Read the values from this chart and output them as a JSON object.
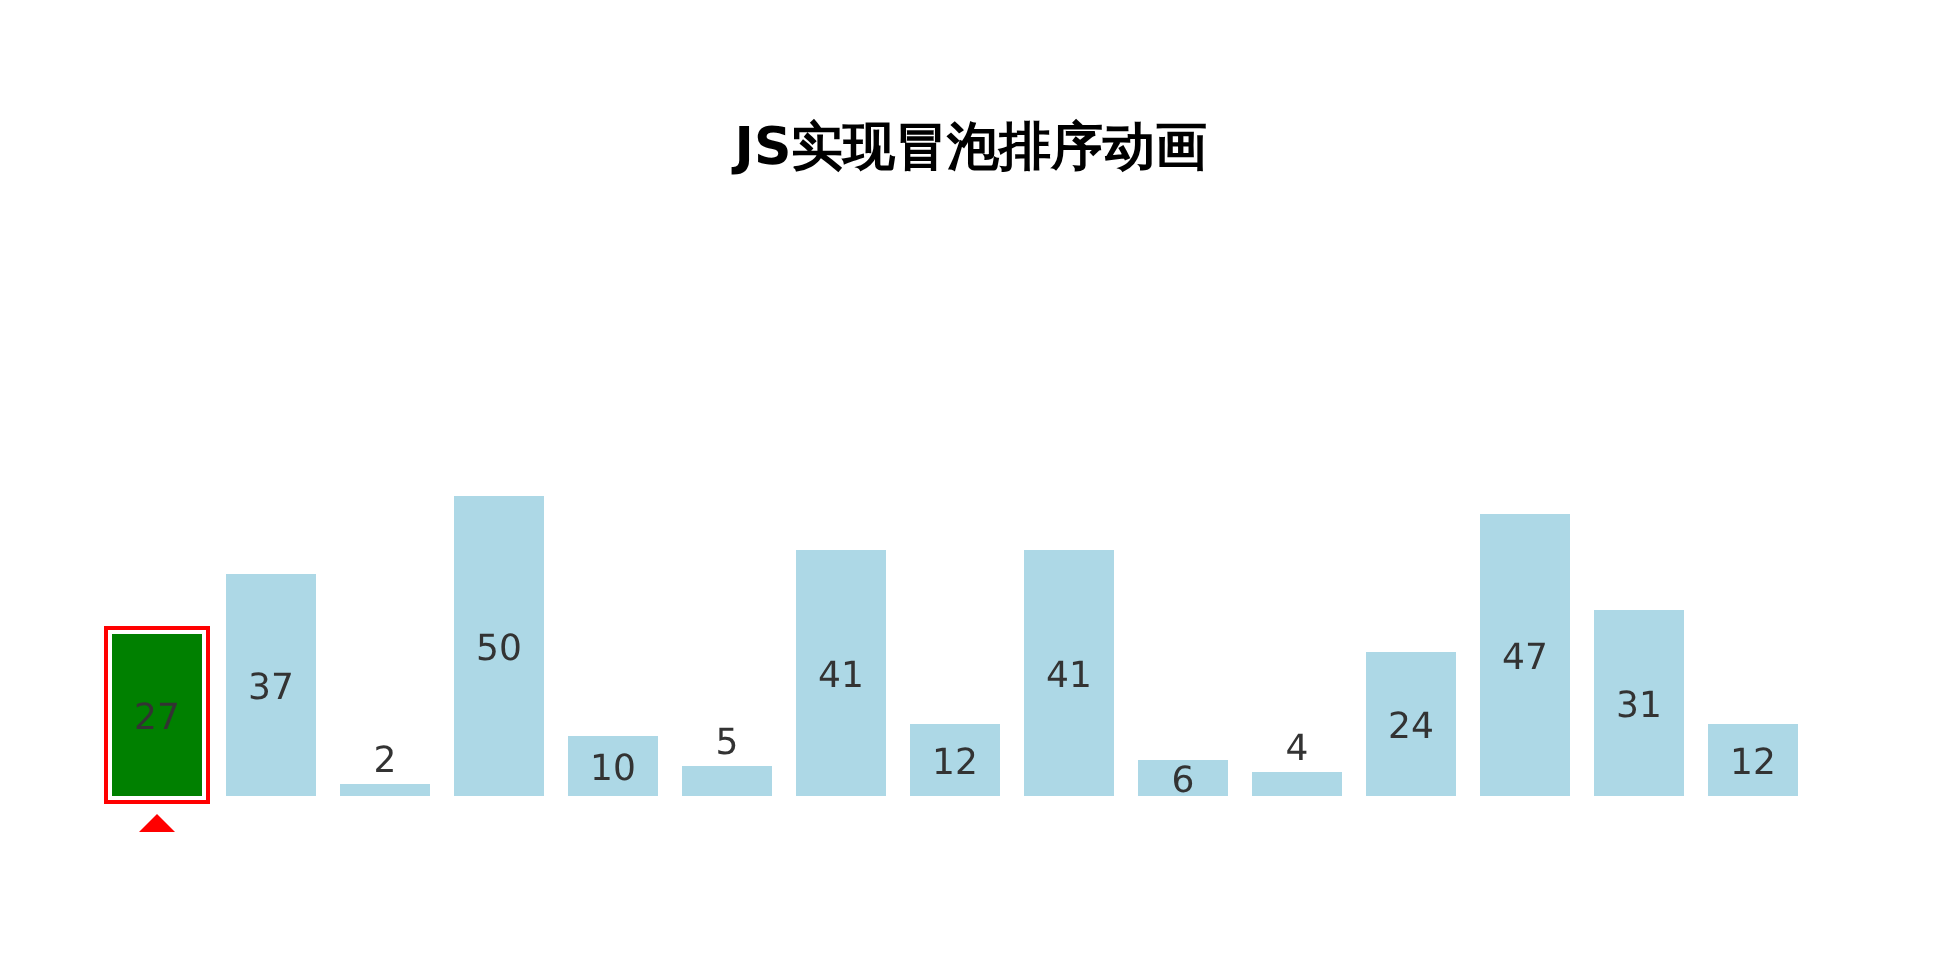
{
  "chart_data": {
    "type": "bar",
    "title": "JS实现冒泡排序动画",
    "categories": [
      null,
      null,
      null,
      null,
      null,
      null,
      null,
      null,
      null,
      null,
      null,
      null,
      null,
      null,
      null
    ],
    "values": [
      27,
      37,
      2,
      50,
      10,
      5,
      41,
      12,
      41,
      6,
      4,
      24,
      47,
      31,
      12
    ],
    "colors": [
      "#008000",
      "#add8e6",
      "#add8e6",
      "#add8e6",
      "#add8e6",
      "#add8e6",
      "#add8e6",
      "#add8e6",
      "#add8e6",
      "#add8e6",
      "#add8e6",
      "#add8e6",
      "#add8e6",
      "#add8e6",
      "#add8e6"
    ],
    "data_labels": true
  }
}
